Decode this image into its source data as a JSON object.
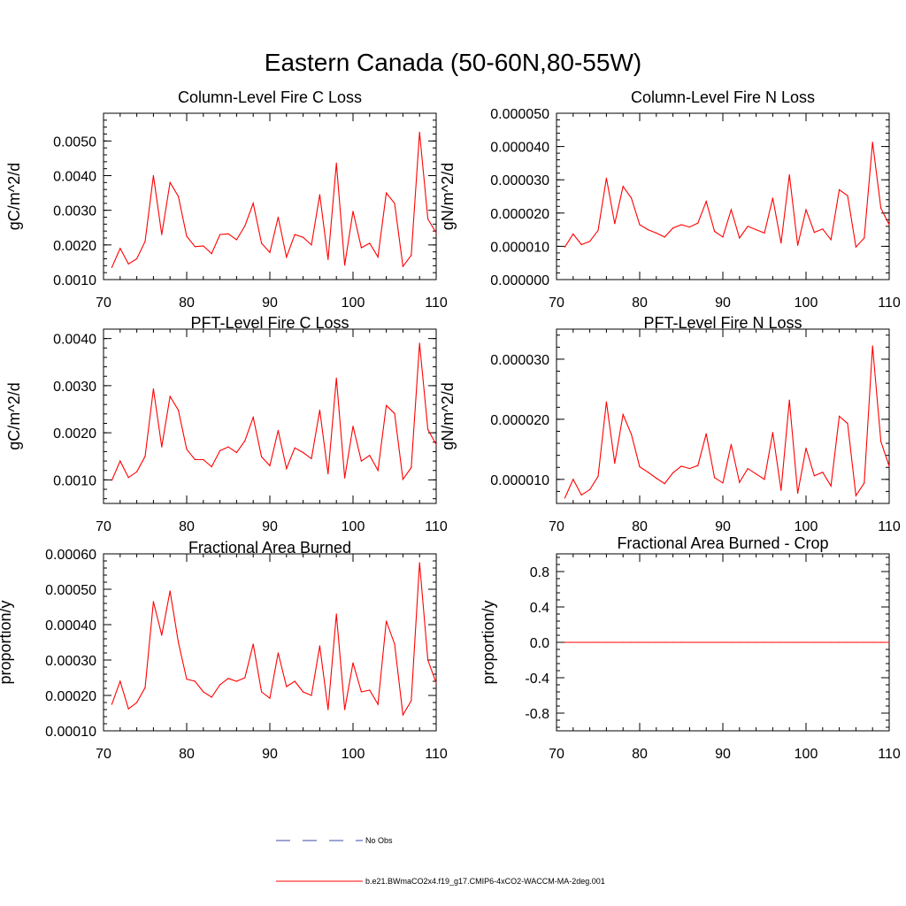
{
  "figure": {
    "title": "Eastern Canada (50-60N,80-55W)"
  },
  "legend": {
    "entries": [
      {
        "label": "No Obs",
        "style": "dashed",
        "color": "#3b4aa8"
      },
      {
        "label": "b.e21.BWmaCO2x4.f19_g17.CMIP6-4xCO2-WACCM-MA-2deg.001",
        "style": "solid",
        "color": "#ff0000"
      }
    ]
  },
  "chart_data": [
    {
      "type": "line",
      "title": "Column-Level Fire C Loss",
      "xlabel": "",
      "ylabel": "gC/m^2/d",
      "xlim": [
        70,
        110
      ],
      "ylim": [
        0.001,
        0.0058
      ],
      "xticks": [
        70,
        80,
        90,
        100,
        110
      ],
      "xtick_labels": [
        "70",
        "80",
        "90",
        "100",
        "110"
      ],
      "yticks": [
        0.001,
        0.002,
        0.003,
        0.004,
        0.005
      ],
      "ytick_labels": [
        "0.0010",
        "0.0020",
        "0.0030",
        "0.0040",
        "0.0050"
      ],
      "grid": false,
      "series": [
        {
          "color": "#ff0000",
          "x": [
            71,
            72,
            73,
            74,
            75,
            76,
            77,
            78,
            79,
            80,
            81,
            82,
            83,
            84,
            85,
            86,
            87,
            88,
            89,
            90,
            91,
            92,
            93,
            94,
            95,
            96,
            97,
            98,
            99,
            100,
            101,
            102,
            103,
            104,
            105,
            106,
            107,
            108,
            109,
            110
          ],
          "values": [
            0.00135,
            0.0019,
            0.00145,
            0.0016,
            0.0021,
            0.004,
            0.0023,
            0.0038,
            0.0034,
            0.00225,
            0.00195,
            0.00197,
            0.00175,
            0.0023,
            0.00232,
            0.00215,
            0.00255,
            0.0032,
            0.00205,
            0.00178,
            0.0028,
            0.00165,
            0.0023,
            0.00222,
            0.002,
            0.00345,
            0.00158,
            0.00436,
            0.00142,
            0.00297,
            0.00192,
            0.00205,
            0.00165,
            0.0035,
            0.0032,
            0.00138,
            0.0017,
            0.00525,
            0.00275,
            0.00235
          ]
        }
      ]
    },
    {
      "type": "line",
      "title": "Column-Level Fire N Loss",
      "xlabel": "",
      "ylabel": "gN/m^2/d",
      "xlim": [
        70,
        110
      ],
      "ylim": [
        0.0,
        5e-05
      ],
      "xticks": [
        70,
        80,
        90,
        100,
        110
      ],
      "xtick_labels": [
        "70",
        "80",
        "90",
        "100",
        "110"
      ],
      "yticks": [
        0.0,
        1e-05,
        2e-05,
        3e-05,
        4e-05,
        5e-05
      ],
      "ytick_labels": [
        "0.000000",
        "0.000010",
        "0.000020",
        "0.000030",
        "0.000040",
        "0.000050"
      ],
      "grid": false,
      "series": [
        {
          "color": "#ff0000",
          "x": [
            71,
            72,
            73,
            74,
            75,
            76,
            77,
            78,
            79,
            80,
            81,
            82,
            83,
            84,
            85,
            86,
            87,
            88,
            89,
            90,
            91,
            92,
            93,
            94,
            95,
            96,
            97,
            98,
            99,
            100,
            101,
            102,
            103,
            104,
            105,
            106,
            107,
            108,
            109,
            110
          ],
          "values": [
            9.8e-06,
            1.37e-05,
            1.05e-05,
            1.15e-05,
            1.48e-05,
            3.05e-05,
            1.68e-05,
            2.8e-05,
            2.45e-05,
            1.65e-05,
            1.5e-05,
            1.4e-05,
            1.28e-05,
            1.55e-05,
            1.65e-05,
            1.58e-05,
            1.7e-05,
            2.35e-05,
            1.45e-05,
            1.28e-05,
            2.1e-05,
            1.25e-05,
            1.6e-05,
            1.5e-05,
            1.4e-05,
            2.45e-05,
            1.1e-05,
            3.15e-05,
            1.03e-05,
            2.1e-05,
            1.42e-05,
            1.52e-05,
            1.2e-05,
            2.7e-05,
            2.52e-05,
            9.8e-06,
            1.25e-05,
            4.13e-05,
            2.15e-05,
            1.65e-05
          ]
        }
      ]
    },
    {
      "type": "line",
      "title": "PFT-Level Fire C Loss",
      "xlabel": "",
      "ylabel": "gC/m^2/d",
      "xlim": [
        70,
        110
      ],
      "ylim": [
        0.0005,
        0.0042
      ],
      "xticks": [
        70,
        80,
        90,
        100,
        110
      ],
      "xtick_labels": [
        "70",
        "80",
        "90",
        "100",
        "110"
      ],
      "yticks": [
        0.001,
        0.002,
        0.003,
        0.004
      ],
      "ytick_labels": [
        "0.0010",
        "0.0020",
        "0.0030",
        "0.0040"
      ],
      "grid": false,
      "series": [
        {
          "color": "#ff0000",
          "x": [
            71,
            72,
            73,
            74,
            75,
            76,
            77,
            78,
            79,
            80,
            81,
            82,
            83,
            84,
            85,
            86,
            87,
            88,
            89,
            90,
            91,
            92,
            93,
            94,
            95,
            96,
            97,
            98,
            99,
            100,
            101,
            102,
            103,
            104,
            105,
            106,
            107,
            108,
            109,
            110
          ],
          "values": [
            0.00099,
            0.0014,
            0.00105,
            0.00117,
            0.0015,
            0.00293,
            0.0017,
            0.00277,
            0.00248,
            0.00165,
            0.00143,
            0.00143,
            0.00128,
            0.00162,
            0.0017,
            0.00158,
            0.00183,
            0.00233,
            0.00149,
            0.0013,
            0.00205,
            0.00124,
            0.00168,
            0.00158,
            0.00145,
            0.00248,
            0.00113,
            0.00316,
            0.00104,
            0.00214,
            0.0014,
            0.00152,
            0.0012,
            0.00258,
            0.00241,
            0.00101,
            0.00126,
            0.0039,
            0.00207,
            0.00175
          ]
        }
      ]
    },
    {
      "type": "line",
      "title": "PFT-Level Fire N Loss",
      "xlabel": "",
      "ylabel": "gN/m^2/d",
      "xlim": [
        70,
        110
      ],
      "ylim": [
        6e-06,
        3.5e-05
      ],
      "xticks": [
        70,
        80,
        90,
        100,
        110
      ],
      "xtick_labels": [
        "70",
        "80",
        "90",
        "100",
        "110"
      ],
      "yticks": [
        1e-05,
        2e-05,
        3e-05
      ],
      "ytick_labels": [
        "0.000010",
        "0.000020",
        "0.000030"
      ],
      "grid": false,
      "series": [
        {
          "color": "#ff0000",
          "x": [
            71,
            72,
            73,
            74,
            75,
            76,
            77,
            78,
            79,
            80,
            81,
            82,
            83,
            84,
            85,
            86,
            87,
            88,
            89,
            90,
            91,
            92,
            93,
            94,
            95,
            96,
            97,
            98,
            99,
            100,
            101,
            102,
            103,
            104,
            105,
            106,
            107,
            108,
            109,
            110
          ],
          "values": [
            6.9e-06,
            1e-05,
            7.4e-06,
            8.3e-06,
            1.05e-05,
            2.29e-05,
            1.27e-05,
            2.08e-05,
            1.75e-05,
            1.21e-05,
            1.12e-05,
            1.02e-05,
            9.3e-06,
            1.11e-05,
            1.22e-05,
            1.18e-05,
            1.23e-05,
            1.76e-05,
            1.03e-05,
            9.4e-06,
            1.58e-05,
            9.5e-06,
            1.18e-05,
            1.09e-05,
            1e-05,
            1.78e-05,
            8.2e-06,
            2.32e-05,
            7.7e-06,
            1.52e-05,
            1.06e-05,
            1.12e-05,
            8.9e-06,
            2.05e-05,
            1.93e-05,
            7.3e-06,
            9.4e-06,
            3.22e-05,
            1.63e-05,
            1.22e-05
          ]
        }
      ]
    },
    {
      "type": "line",
      "title": "Fractional Area Burned",
      "xlabel": "",
      "ylabel": "proportion/y",
      "xlim": [
        70,
        110
      ],
      "ylim": [
        0.0001,
        0.0006
      ],
      "xticks": [
        70,
        80,
        90,
        100,
        110
      ],
      "xtick_labels": [
        "70",
        "80",
        "90",
        "100",
        "110"
      ],
      "yticks": [
        0.0001,
        0.0002,
        0.0003,
        0.0004,
        0.0005,
        0.0006
      ],
      "ytick_labels": [
        "0.00010",
        "0.00020",
        "0.00030",
        "0.00040",
        "0.00050",
        "0.00060"
      ],
      "grid": false,
      "series": [
        {
          "color": "#ff0000",
          "x": [
            71,
            72,
            73,
            74,
            75,
            76,
            77,
            78,
            79,
            80,
            81,
            82,
            83,
            84,
            85,
            86,
            87,
            88,
            89,
            90,
            91,
            92,
            93,
            94,
            95,
            96,
            97,
            98,
            99,
            100,
            101,
            102,
            103,
            104,
            105,
            106,
            107,
            108,
            109,
            110
          ],
          "values": [
            0.000175,
            0.00024,
            0.000162,
            0.00018,
            0.000222,
            0.000465,
            0.00037,
            0.000495,
            0.00035,
            0.000246,
            0.00024,
            0.00021,
            0.000195,
            0.00023,
            0.000248,
            0.00024,
            0.00025,
            0.000345,
            0.00021,
            0.000192,
            0.00032,
            0.000225,
            0.00024,
            0.00021,
            0.0002,
            0.00034,
            0.00016,
            0.00043,
            0.00016,
            0.000292,
            0.00021,
            0.000215,
            0.000175,
            0.00041,
            0.000345,
            0.000145,
            0.000185,
            0.000575,
            0.0003,
            0.000235
          ]
        }
      ]
    },
    {
      "type": "line",
      "title": "Fractional Area Burned - Crop",
      "xlabel": "",
      "ylabel": "proportion/y",
      "xlim": [
        70,
        110
      ],
      "ylim": [
        -1.0,
        1.0
      ],
      "xticks": [
        70,
        80,
        90,
        100,
        110
      ],
      "xtick_labels": [
        "70",
        "80",
        "90",
        "100",
        "110"
      ],
      "yticks": [
        -0.8,
        -0.4,
        0.0,
        0.4,
        0.8
      ],
      "ytick_labels": [
        "-0.8",
        "-0.4",
        "0.0",
        "0.4",
        "0.8"
      ],
      "grid": false,
      "series": [
        {
          "color": "#ff0000",
          "x": [
            71,
            72,
            73,
            74,
            75,
            76,
            77,
            78,
            79,
            80,
            81,
            82,
            83,
            84,
            85,
            86,
            87,
            88,
            89,
            90,
            91,
            92,
            93,
            94,
            95,
            96,
            97,
            98,
            99,
            100,
            101,
            102,
            103,
            104,
            105,
            106,
            107,
            108,
            109,
            110
          ],
          "values": [
            0,
            0,
            0,
            0,
            0,
            0,
            0,
            0,
            0,
            0,
            0,
            0,
            0,
            0,
            0,
            0,
            0,
            0,
            0,
            0,
            0,
            0,
            0,
            0,
            0,
            0,
            0,
            0,
            0,
            0,
            0,
            0,
            0,
            0,
            0,
            0,
            0,
            0,
            0,
            0
          ]
        }
      ]
    }
  ]
}
